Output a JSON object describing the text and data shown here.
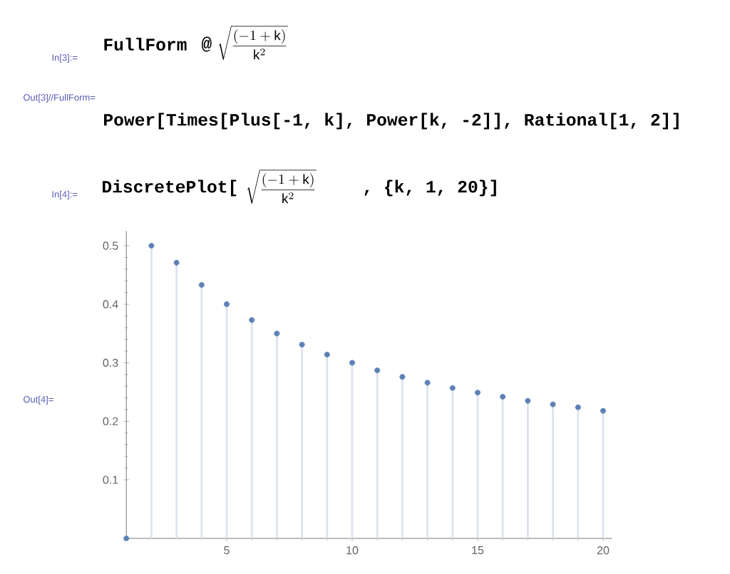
{
  "chart_data": {
    "type": "lollipop",
    "x": [
      1,
      2,
      3,
      4,
      5,
      6,
      7,
      8,
      9,
      10,
      11,
      12,
      13,
      14,
      15,
      16,
      17,
      18,
      19,
      20
    ],
    "values": [
      0,
      0.5,
      0.471,
      0.433,
      0.4,
      0.373,
      0.35,
      0.331,
      0.314,
      0.3,
      0.287,
      0.276,
      0.266,
      0.257,
      0.249,
      0.242,
      0.235,
      0.229,
      0.224,
      0.218
    ],
    "color": "#5e81b5",
    "marker": "circle",
    "xlim": [
      1,
      20.35
    ],
    "ylim": [
      0,
      0.525
    ],
    "xticks": [
      5,
      10,
      15,
      20
    ],
    "yticks": [
      0.1,
      0.2,
      0.3,
      0.4,
      0.5
    ],
    "annotations": [
      "In[3]:=",
      "FullForm",
      "@",
      "\\sqrt{\\frac{(-1+\\mathrm{k})}{\\mathrm{k}^{2}}}",
      "Out[3]//FullForm=",
      "Power[Times[Plus[-1, k], Power[k, -2]], Rational[1, 2]]",
      "In[4]:=",
      "DiscretePlot[",
      "\\sqrt{\\frac{(-1+\\mathrm{k})}{\\mathrm{k}^{2}}}",
      ", {k, 1, 20}]",
      "Out[4]="
    ]
  }
}
